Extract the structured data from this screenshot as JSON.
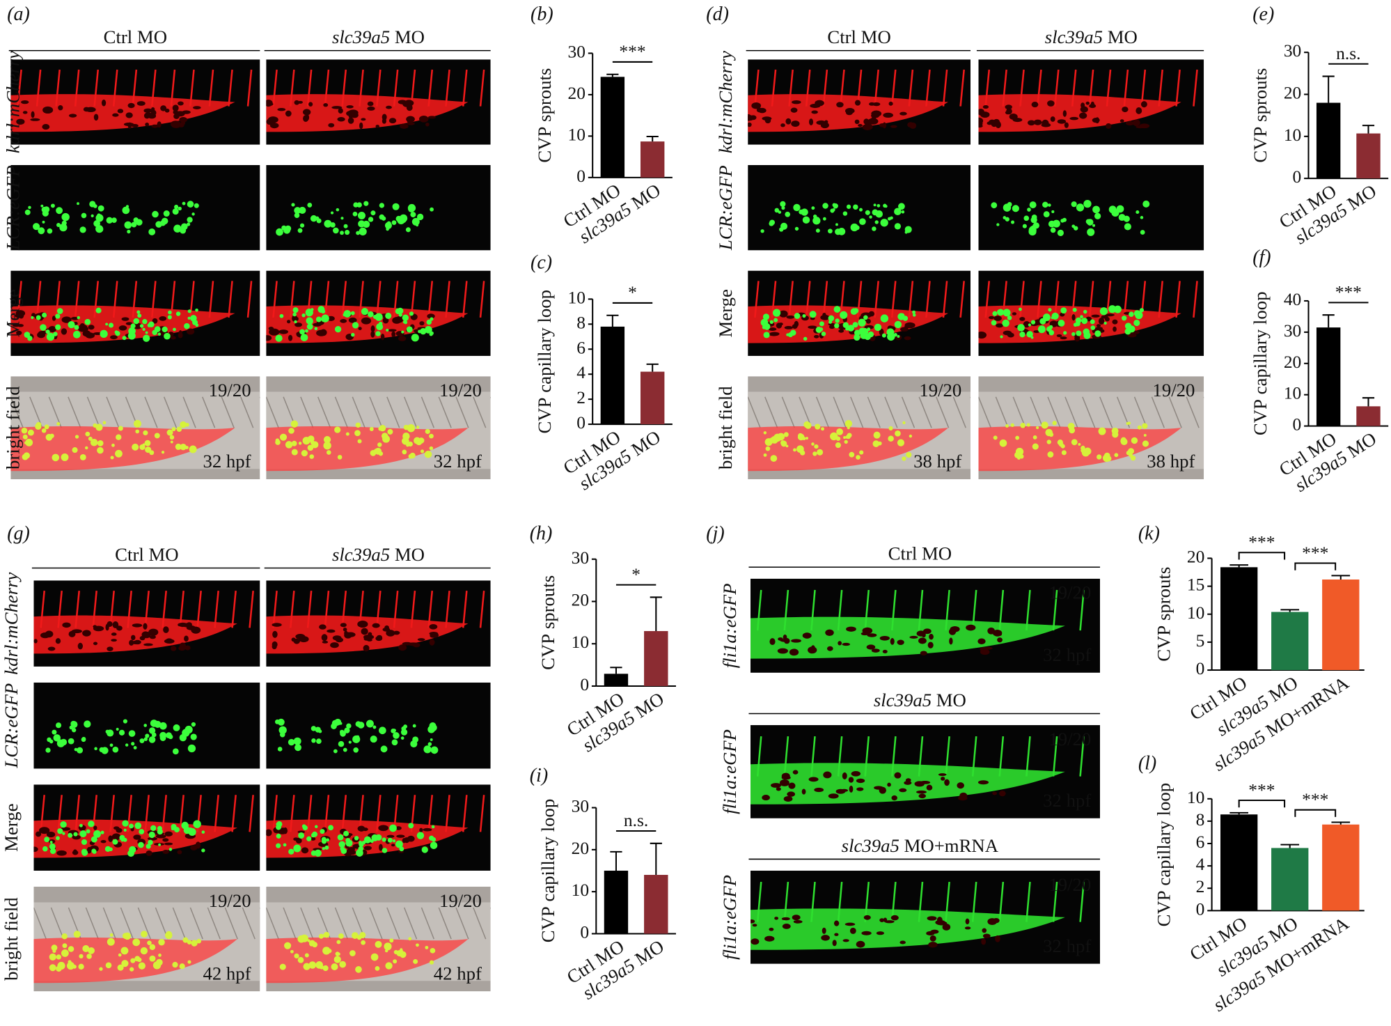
{
  "panels": [
    {
      "label": "(a)",
      "headers": [
        "Ctrl MO",
        "slc39a5 MO"
      ],
      "rows": [
        "kdrl:mCherry",
        "LCR:eGFP",
        "Merge",
        "bright field"
      ],
      "row_colors": [
        "#e0201b",
        "#2db52d",
        "#f39a2b",
        "#111111"
      ],
      "counts": [
        "19/20",
        "19/20"
      ],
      "stages": [
        "32 hpf",
        "32 hpf"
      ]
    },
    {
      "label": "(d)",
      "headers": [
        "Ctrl MO",
        "slc39a5 MO"
      ],
      "rows": [
        "kdrl:mCherry",
        "LCR:eGFP",
        "Merge",
        "bright field"
      ],
      "row_colors": [
        "#e0201b",
        "#2db52d",
        "#f39a2b",
        "#111111"
      ],
      "counts": [
        "19/20",
        "19/20"
      ],
      "stages": [
        "38 hpf",
        "38 hpf"
      ]
    },
    {
      "label": "(g)",
      "headers": [
        "Ctrl MO",
        "slc39a5 MO"
      ],
      "rows": [
        "kdrl:mCherry",
        "LCR:eGFP",
        "Merge",
        "bright field"
      ],
      "row_colors": [
        "#e0201b",
        "#2db52d",
        "#f39a2b",
        "#111111"
      ],
      "counts": [
        "19/20",
        "19/20"
      ],
      "stages": [
        "42 hpf",
        "42 hpf"
      ]
    },
    {
      "label": "(j)",
      "headers": [
        "Ctrl MO",
        "slc39a5 MO",
        "slc39a5 MO+mRNA"
      ],
      "rows": [
        "fli1a:eGFP",
        "fli1a:eGFP",
        "fli1a:eGFP"
      ],
      "row_colors": [
        "#2db52d",
        "#2db52d",
        "#2db52d"
      ],
      "counts": [
        "19/20",
        "19/20",
        "19/20"
      ],
      "stages": [
        "32 hpf",
        "32 hpf",
        "32 hpf"
      ]
    }
  ],
  "chart_data": [
    {
      "type": "bar",
      "label": "(b)",
      "ylabel": "CVP sprouts",
      "categories": [
        "Ctrl MO",
        "slc39a5 MO"
      ],
      "values": [
        24.3,
        8.7
      ],
      "errors": [
        0.6,
        1.2
      ],
      "colors": [
        "#000000",
        "#8b2c32"
      ],
      "ylim": [
        0,
        30
      ],
      "yticks": [
        0,
        10,
        20,
        30
      ],
      "annotations": [
        "***"
      ]
    },
    {
      "type": "bar",
      "label": "(c)",
      "ylabel": "CVP capillary loop",
      "categories": [
        "Ctrl MO",
        "slc39a5 MO"
      ],
      "values": [
        7.8,
        4.2
      ],
      "errors": [
        0.9,
        0.6
      ],
      "colors": [
        "#000000",
        "#8b2c32"
      ],
      "ylim": [
        0,
        10
      ],
      "yticks": [
        0,
        2,
        4,
        6,
        8,
        10
      ],
      "annotations": [
        "*"
      ]
    },
    {
      "type": "bar",
      "label": "(e)",
      "ylabel": "CVP sprouts",
      "categories": [
        "Ctrl MO",
        "slc39a5 MO"
      ],
      "values": [
        18,
        10.7
      ],
      "errors": [
        6.3,
        1.9
      ],
      "colors": [
        "#000000",
        "#8b2c32"
      ],
      "ylim": [
        0,
        30
      ],
      "yticks": [
        0,
        10,
        20,
        30
      ],
      "annotations": [
        "n.s."
      ]
    },
    {
      "type": "bar",
      "label": "(f)",
      "ylabel": "CVP capillary loop",
      "categories": [
        "Ctrl MO",
        "slc39a5 MO"
      ],
      "values": [
        31.5,
        6.3
      ],
      "errors": [
        4,
        2.7
      ],
      "colors": [
        "#000000",
        "#8b2c32"
      ],
      "ylim": [
        0,
        40
      ],
      "yticks": [
        0,
        10,
        20,
        30,
        40
      ],
      "annotations": [
        "***"
      ]
    },
    {
      "type": "bar",
      "label": "(h)",
      "ylabel": "CVP sprouts",
      "categories": [
        "Ctrl MO",
        "slc39a5 MO"
      ],
      "values": [
        2.9,
        13
      ],
      "errors": [
        1.5,
        8
      ],
      "colors": [
        "#000000",
        "#8b2c32"
      ],
      "ylim": [
        0,
        30
      ],
      "yticks": [
        0,
        10,
        20,
        30
      ],
      "annotations": [
        "*"
      ]
    },
    {
      "type": "bar",
      "label": "(i)",
      "ylabel": "CVP capillary loop",
      "categories": [
        "Ctrl MO",
        "slc39a5 MO"
      ],
      "values": [
        15,
        14
      ],
      "errors": [
        4.5,
        7.5
      ],
      "colors": [
        "#000000",
        "#8b2c32"
      ],
      "ylim": [
        0,
        30
      ],
      "yticks": [
        0,
        10,
        20,
        30
      ],
      "annotations": [
        "n.s."
      ]
    },
    {
      "type": "bar",
      "label": "(k)",
      "ylabel": "CVP sprouts",
      "categories": [
        "Ctrl MO",
        "slc39a5 MO",
        "slc39a5 MO+mRNA"
      ],
      "values": [
        18.4,
        10.4,
        16.2
      ],
      "errors": [
        0.4,
        0.4,
        0.7
      ],
      "colors": [
        "#000000",
        "#1f7a46",
        "#f05a28"
      ],
      "ylim": [
        0,
        20
      ],
      "yticks": [
        0,
        5,
        10,
        15,
        20
      ],
      "annotations": [
        "***",
        "***"
      ]
    },
    {
      "type": "bar",
      "label": "(l)",
      "ylabel": "CVP capillary loop",
      "categories": [
        "Ctrl MO",
        "slc39a5 MO",
        "slc39a5 MO+mRNA"
      ],
      "values": [
        8.6,
        5.6,
        7.7
      ],
      "errors": [
        0.15,
        0.3,
        0.2
      ],
      "colors": [
        "#000000",
        "#1f7a46",
        "#f05a28"
      ],
      "ylim": [
        0,
        10
      ],
      "yticks": [
        0,
        2,
        4,
        6,
        8,
        10
      ],
      "annotations": [
        "***",
        "***"
      ]
    }
  ]
}
